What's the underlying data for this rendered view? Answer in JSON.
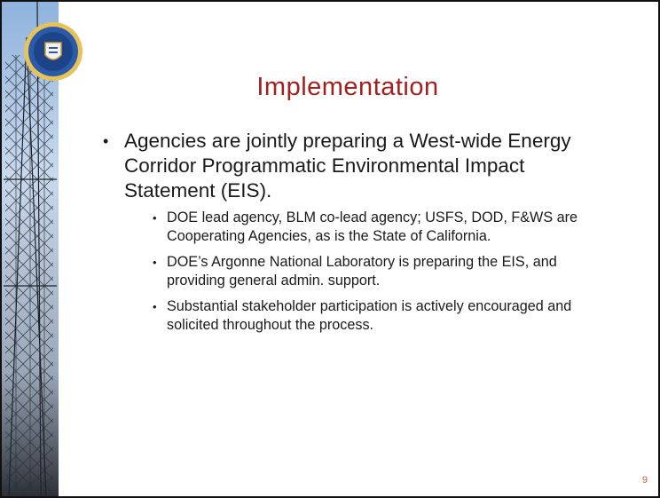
{
  "title": "Implementation",
  "bullets": [
    {
      "text": "Agencies are jointly preparing a West-wide Energy Corridor Programmatic Environmental Impact Statement (EIS).",
      "subs": [
        "DOE lead agency, BLM co-lead agency; USFS, DOD, F&WS are Cooperating Agencies, as is the State of California.",
        "DOE’s Argonne National Laboratory is preparing the EIS, and providing general admin. support.",
        "Substantial stakeholder participation is actively encouraged and solicited throughout the process."
      ]
    }
  ],
  "page_number": "9"
}
